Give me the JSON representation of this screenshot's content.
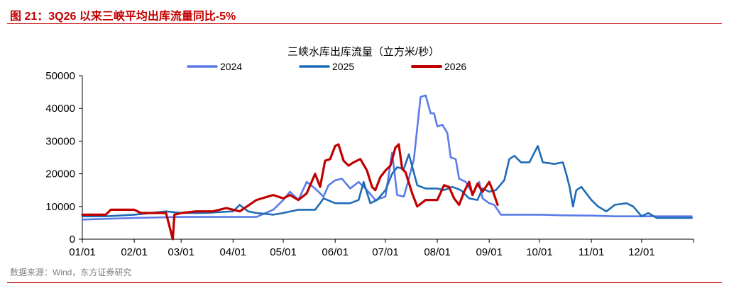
{
  "figure": {
    "title": "图 21：3Q26 以来三峡平均出库流量同比-5%",
    "source": "数据来源：Wind，东方证券研究"
  },
  "chart_data": {
    "type": "line",
    "title": "三峡水库出库流量（立方米/秒）",
    "xlabel": "",
    "ylabel": "",
    "ylim": [
      0,
      50000
    ],
    "yticks": [
      0,
      10000,
      20000,
      30000,
      40000,
      50000
    ],
    "xticks": [
      "01/01",
      "02/01",
      "03/01",
      "04/01",
      "05/01",
      "06/01",
      "07/01",
      "08/01",
      "09/01",
      "10/01",
      "11/01",
      "12/01"
    ],
    "legend_position": "top",
    "grid": false,
    "series": [
      {
        "name": "2024",
        "color": "#5b7be8",
        "points": [
          [
            "01/01",
            6000
          ],
          [
            "02/01",
            6500
          ],
          [
            "03/01",
            6800
          ],
          [
            "03/15",
            6800
          ],
          [
            "04/01",
            6800
          ],
          [
            "04/15",
            6800
          ],
          [
            "04/25",
            9000
          ],
          [
            "05/01",
            12000
          ],
          [
            "05/05",
            14500
          ],
          [
            "05/10",
            12000
          ],
          [
            "05/15",
            17500
          ],
          [
            "05/20",
            15500
          ],
          [
            "05/25",
            13000
          ],
          [
            "05/28",
            16500
          ],
          [
            "06/01",
            18000
          ],
          [
            "06/05",
            18500
          ],
          [
            "06/10",
            15500
          ],
          [
            "06/15",
            17500
          ],
          [
            "06/20",
            15000
          ],
          [
            "06/25",
            12000
          ],
          [
            "07/01",
            13000
          ],
          [
            "07/05",
            26500
          ],
          [
            "07/08",
            13500
          ],
          [
            "07/12",
            13000
          ],
          [
            "07/15",
            18500
          ],
          [
            "07/18",
            24500
          ],
          [
            "07/20",
            34000
          ],
          [
            "07/22",
            43500
          ],
          [
            "07/25",
            44000
          ],
          [
            "07/28",
            38500
          ],
          [
            "07/30",
            38500
          ],
          [
            "08/01",
            34500
          ],
          [
            "08/04",
            35000
          ],
          [
            "08/07",
            32500
          ],
          [
            "08/09",
            25000
          ],
          [
            "08/12",
            24500
          ],
          [
            "08/14",
            18500
          ],
          [
            "08/18",
            17500
          ],
          [
            "08/22",
            14000
          ],
          [
            "08/26",
            17500
          ],
          [
            "08/28",
            12500
          ],
          [
            "09/01",
            11000
          ],
          [
            "09/04",
            10500
          ],
          [
            "09/08",
            7500
          ],
          [
            "09/15",
            7500
          ],
          [
            "10/01",
            7500
          ],
          [
            "10/15",
            7300
          ],
          [
            "11/01",
            7200
          ],
          [
            "11/15",
            7000
          ],
          [
            "12/01",
            7000
          ],
          [
            "12/15",
            7000
          ],
          [
            "12/31",
            7000
          ]
        ]
      },
      {
        "name": "2025",
        "color": "#1f6bb5",
        "points": [
          [
            "01/01",
            7000
          ],
          [
            "01/15",
            7000
          ],
          [
            "02/01",
            7500
          ],
          [
            "02/20",
            8500
          ],
          [
            "03/01",
            8000
          ],
          [
            "03/15",
            8000
          ],
          [
            "04/01",
            8500
          ],
          [
            "04/05",
            10500
          ],
          [
            "04/10",
            8500
          ],
          [
            "04/15",
            8000
          ],
          [
            "04/25",
            7500
          ],
          [
            "05/01",
            8000
          ],
          [
            "05/10",
            9000
          ],
          [
            "05/20",
            9000
          ],
          [
            "05/23",
            11000
          ],
          [
            "05/25",
            12500
          ],
          [
            "06/01",
            11000
          ],
          [
            "06/10",
            11000
          ],
          [
            "06/15",
            12000
          ],
          [
            "06/18",
            17500
          ],
          [
            "06/22",
            11000
          ],
          [
            "06/26",
            12000
          ],
          [
            "07/01",
            15000
          ],
          [
            "07/05",
            20000
          ],
          [
            "07/08",
            22000
          ],
          [
            "07/12",
            21500
          ],
          [
            "07/15",
            26000
          ],
          [
            "07/20",
            16500
          ],
          [
            "07/25",
            15500
          ],
          [
            "08/01",
            15500
          ],
          [
            "08/05",
            15000
          ],
          [
            "08/10",
            16000
          ],
          [
            "08/15",
            15000
          ],
          [
            "08/20",
            12500
          ],
          [
            "08/25",
            12000
          ],
          [
            "08/28",
            15500
          ],
          [
            "09/01",
            14500
          ],
          [
            "09/05",
            15000
          ],
          [
            "09/10",
            18000
          ],
          [
            "09/13",
            24500
          ],
          [
            "09/16",
            25500
          ],
          [
            "09/20",
            23500
          ],
          [
            "09/25",
            23500
          ],
          [
            "09/30",
            28500
          ],
          [
            "10/03",
            23500
          ],
          [
            "10/10",
            23000
          ],
          [
            "10/15",
            23500
          ],
          [
            "10/17",
            20000
          ],
          [
            "10/19",
            16000
          ],
          [
            "10/21",
            10000
          ],
          [
            "10/23",
            15000
          ],
          [
            "10/26",
            16000
          ],
          [
            "11/01",
            12000
          ],
          [
            "11/05",
            10000
          ],
          [
            "11/10",
            8500
          ],
          [
            "11/15",
            10500
          ],
          [
            "11/22",
            11000
          ],
          [
            "11/26",
            10000
          ],
          [
            "12/01",
            7000
          ],
          [
            "12/05",
            8000
          ],
          [
            "12/10",
            6500
          ],
          [
            "12/20",
            6500
          ],
          [
            "12/31",
            6500
          ]
        ]
      },
      {
        "name": "2026",
        "color": "#c00000",
        "points": [
          [
            "01/01",
            7500
          ],
          [
            "01/15",
            7500
          ],
          [
            "01/18",
            9000
          ],
          [
            "02/01",
            9000
          ],
          [
            "02/05",
            8000
          ],
          [
            "02/20",
            8000
          ],
          [
            "02/24",
            0
          ],
          [
            "02/25",
            7500
          ],
          [
            "03/01",
            8000
          ],
          [
            "03/10",
            8500
          ],
          [
            "03/20",
            8500
          ],
          [
            "03/28",
            9500
          ],
          [
            "04/05",
            8500
          ],
          [
            "04/15",
            12000
          ],
          [
            "04/25",
            13500
          ],
          [
            "05/01",
            12500
          ],
          [
            "05/05",
            13500
          ],
          [
            "05/10",
            12000
          ],
          [
            "05/15",
            14000
          ],
          [
            "05/20",
            20000
          ],
          [
            "05/23",
            16000
          ],
          [
            "05/26",
            24000
          ],
          [
            "05/29",
            24500
          ],
          [
            "06/01",
            28500
          ],
          [
            "06/03",
            29000
          ],
          [
            "06/06",
            24000
          ],
          [
            "06/09",
            22500
          ],
          [
            "06/12",
            23500
          ],
          [
            "06/16",
            24500
          ],
          [
            "06/20",
            21000
          ],
          [
            "06/23",
            16000
          ],
          [
            "06/25",
            15000
          ],
          [
            "06/28",
            19000
          ],
          [
            "07/01",
            21000
          ],
          [
            "07/04",
            22500
          ],
          [
            "07/07",
            28000
          ],
          [
            "07/09",
            29000
          ],
          [
            "07/11",
            21500
          ],
          [
            "07/13",
            20500
          ],
          [
            "07/17",
            14000
          ],
          [
            "07/20",
            10000
          ],
          [
            "07/25",
            12000
          ],
          [
            "08/01",
            12000
          ],
          [
            "08/05",
            16500
          ],
          [
            "08/08",
            16000
          ],
          [
            "08/11",
            12500
          ],
          [
            "08/14",
            10500
          ],
          [
            "08/17",
            14500
          ],
          [
            "08/20",
            17500
          ],
          [
            "08/22",
            13500
          ],
          [
            "08/25",
            17000
          ],
          [
            "08/28",
            14500
          ],
          [
            "09/01",
            17500
          ],
          [
            "09/03",
            15000
          ],
          [
            "09/06",
            10500
          ]
        ]
      }
    ]
  }
}
